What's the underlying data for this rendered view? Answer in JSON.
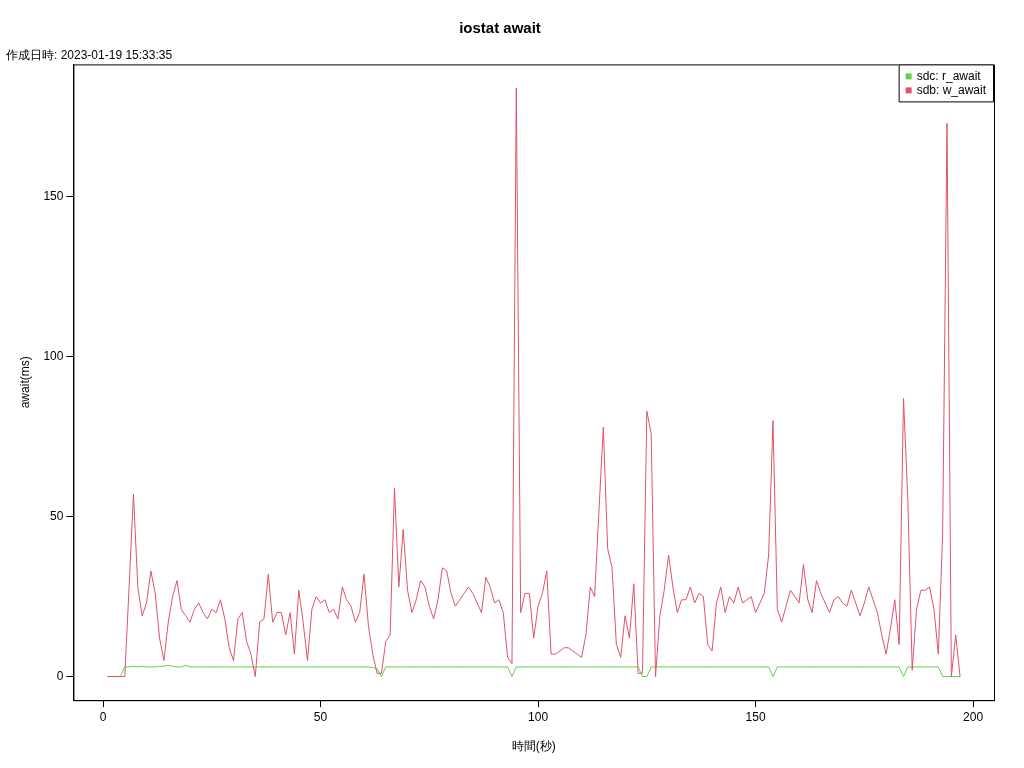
{
  "chart_data": {
    "type": "line",
    "title": "iostat await",
    "subtitle": "作成日時: 2023-01-19 15:33:35",
    "xlabel": "時間(秒)",
    "ylabel": "await(ms)",
    "x": [
      1,
      2,
      3,
      4,
      5,
      6,
      7,
      8,
      9,
      10,
      11,
      12,
      13,
      14,
      15,
      16,
      17,
      18,
      19,
      20,
      21,
      22,
      23,
      24,
      25,
      26,
      27,
      28,
      29,
      30,
      31,
      32,
      33,
      34,
      35,
      36,
      37,
      38,
      39,
      40,
      41,
      42,
      43,
      44,
      45,
      46,
      47,
      48,
      49,
      50,
      51,
      52,
      53,
      54,
      55,
      56,
      57,
      58,
      59,
      60,
      61,
      62,
      63,
      64,
      65,
      66,
      67,
      68,
      69,
      70,
      71,
      72,
      73,
      74,
      75,
      76,
      77,
      78,
      79,
      80,
      81,
      82,
      83,
      84,
      85,
      86,
      87,
      88,
      89,
      90,
      91,
      92,
      93,
      94,
      95,
      96,
      97,
      98,
      99,
      100,
      101,
      102,
      103,
      104,
      105,
      106,
      107,
      108,
      109,
      110,
      111,
      112,
      113,
      114,
      115,
      116,
      117,
      118,
      119,
      120,
      121,
      122,
      123,
      124,
      125,
      126,
      127,
      128,
      129,
      130,
      131,
      132,
      133,
      134,
      135,
      136,
      137,
      138,
      139,
      140,
      141,
      142,
      143,
      144,
      145,
      146,
      147,
      148,
      149,
      150,
      151,
      152,
      153,
      154,
      155,
      156,
      157,
      158,
      159,
      160,
      161,
      162,
      163,
      164,
      165,
      166,
      167,
      168,
      169,
      170,
      171,
      172,
      173,
      174,
      175,
      176,
      177,
      178,
      179,
      180,
      181,
      182,
      183,
      184,
      185,
      186,
      187,
      188,
      189,
      190,
      191,
      192,
      193,
      194,
      195,
      196,
      197
    ],
    "series": [
      {
        "name": "sdc: r_await",
        "color": "#61d04f",
        "values": [
          0,
          0,
          0,
          0,
          3,
          3,
          3.2,
          3,
          3.2,
          3,
          3,
          3,
          3.2,
          3.2,
          3.5,
          3.2,
          3,
          3,
          3.5,
          3,
          3,
          3,
          3,
          3,
          3,
          3,
          3,
          3,
          3,
          3,
          3,
          3,
          3,
          3,
          3,
          3,
          3,
          3,
          3,
          3,
          3,
          3,
          3,
          3,
          3,
          3,
          3,
          3,
          3,
          3,
          3,
          3,
          3,
          3,
          3,
          3,
          3,
          3,
          3,
          3,
          3,
          2.8,
          2.5,
          0,
          3,
          3,
          3,
          3,
          3,
          3,
          3,
          3,
          3,
          3,
          3,
          3,
          3,
          3,
          3,
          3,
          3,
          3,
          3,
          3,
          3,
          3,
          3,
          3,
          3,
          3,
          3,
          3,
          3,
          0,
          3,
          3,
          3,
          3,
          3,
          3,
          3,
          3,
          3,
          3,
          3,
          3,
          3,
          3,
          3,
          3,
          3,
          3,
          3,
          3,
          3,
          3,
          3,
          3,
          3,
          3,
          3,
          3,
          3,
          0,
          0,
          3,
          3,
          3,
          3,
          3,
          3,
          3,
          3,
          3,
          3,
          3,
          3,
          3,
          3,
          3,
          3,
          3,
          3,
          3,
          3,
          3,
          3,
          3,
          3,
          3,
          3,
          3,
          3,
          0,
          3,
          3,
          3,
          3,
          3,
          3,
          3,
          3,
          3,
          3,
          3,
          3,
          3,
          3,
          3,
          3,
          3,
          3,
          3,
          3,
          3,
          3,
          3,
          3,
          3,
          3,
          3,
          3,
          3,
          0,
          3,
          3,
          3,
          3,
          3,
          3,
          3,
          3,
          0,
          0,
          0,
          0,
          0
        ]
      },
      {
        "name": "sdb: w_await",
        "color": "#df536b",
        "values": [
          0,
          0,
          0,
          0,
          0,
          28,
          57,
          28,
          19,
          23,
          33,
          26,
          12,
          5,
          17,
          25,
          30,
          21,
          19,
          17,
          21,
          23,
          20,
          18,
          21,
          20,
          24,
          18,
          9,
          5,
          18,
          20,
          11,
          7,
          0,
          17,
          18,
          32,
          17,
          20,
          20,
          13,
          20,
          7,
          27,
          17,
          5,
          21,
          25,
          23,
          24,
          20,
          21,
          18,
          28,
          24,
          22,
          17,
          20,
          32,
          16,
          7,
          1,
          1,
          11,
          13,
          59,
          28,
          46,
          27,
          20,
          24,
          30,
          28,
          22,
          18,
          24,
          34,
          33,
          26,
          22,
          24,
          26,
          28,
          26,
          23,
          20,
          31,
          28,
          23,
          24,
          20,
          6,
          4,
          184,
          20,
          26,
          26,
          12,
          22,
          26,
          33,
          7,
          7,
          8,
          9,
          9,
          8,
          7,
          6,
          13,
          28,
          25,
          52,
          78,
          40,
          34,
          10,
          6,
          19,
          12,
          29,
          1,
          1,
          83,
          76,
          0,
          19,
          27,
          38,
          28,
          20,
          24,
          24,
          28,
          23,
          26,
          25,
          10,
          8,
          23,
          28,
          20,
          25,
          23,
          28,
          23,
          24,
          25,
          20,
          23,
          26,
          38,
          80,
          21,
          17,
          22,
          27,
          25,
          23,
          35,
          24,
          20,
          30,
          26,
          23,
          20,
          24,
          25,
          23,
          22,
          27,
          23,
          19,
          23,
          28,
          24,
          20,
          13,
          7,
          15,
          24,
          10,
          87,
          55,
          2,
          21,
          27,
          27,
          28,
          21,
          7,
          45,
          173,
          0,
          13,
          0
        ]
      }
    ],
    "xlim": [
      -6.8,
      204.8
    ],
    "ylim": [
      -7.4,
      191.4
    ],
    "xticks": [
      0,
      50,
      100,
      150,
      200
    ],
    "yticks": [
      0,
      50,
      100,
      150
    ],
    "legend": "top right"
  }
}
